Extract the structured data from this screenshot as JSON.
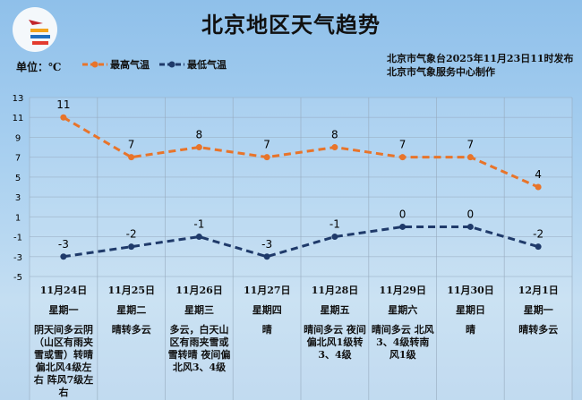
{
  "header": {
    "title": "北京地区天气趋势",
    "unit": "单位：℃",
    "publisher": "北京市气象台2025年11月23日11时发布",
    "producer": "北京市气象服务中心制作"
  },
  "colors": {
    "high": "#e8742a",
    "low": "#1f3a6a"
  },
  "chart_data": {
    "type": "line",
    "categories": [
      "11月24日",
      "11月25日",
      "11月26日",
      "11月27日",
      "11月28日",
      "11月29日",
      "11月30日",
      "12月1日"
    ],
    "series": [
      {
        "name": "最高气温",
        "values": [
          11,
          7,
          8,
          7,
          8,
          7,
          7,
          4
        ]
      },
      {
        "name": "最低气温",
        "values": [
          -3,
          -2,
          -1,
          -3,
          -1,
          0,
          0,
          -2
        ]
      }
    ],
    "yticks": [
      "13",
      "11",
      "9",
      "7",
      "5",
      "3",
      "1",
      "-1",
      "-3",
      "-5"
    ],
    "ylim": [
      -5,
      13
    ],
    "grid": true,
    "legend": "top-left"
  },
  "table": {
    "weekdays": [
      "星期一",
      "星期二",
      "星期三",
      "星期四",
      "星期五",
      "星期六",
      "星期日",
      "星期一"
    ],
    "weather": [
      "阴天间多云阴（山区有雨夹雪或雪）转晴 偏北风4级左右 阵风7级左右",
      "晴转多云",
      "多云，白天山区有雨夹雪或雪转晴 夜间偏北风3、4级",
      "晴",
      "晴间多云 夜间偏北风1级转3、4级",
      "晴间多云 北风3、4级转南风1级",
      "晴",
      "晴转多云"
    ]
  }
}
